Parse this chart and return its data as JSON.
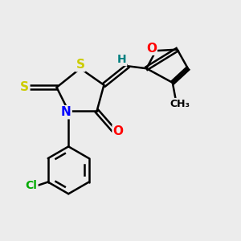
{
  "bg_color": "#ececec",
  "atom_colors": {
    "S": "#cccc00",
    "N": "#0000ff",
    "O": "#ff0000",
    "C": "#000000",
    "H": "#008080",
    "Cl": "#00aa00"
  },
  "bond_color": "#000000",
  "bond_width": 1.8,
  "font_size": 10,
  "xlim": [
    0,
    10
  ],
  "ylim": [
    0,
    10
  ]
}
